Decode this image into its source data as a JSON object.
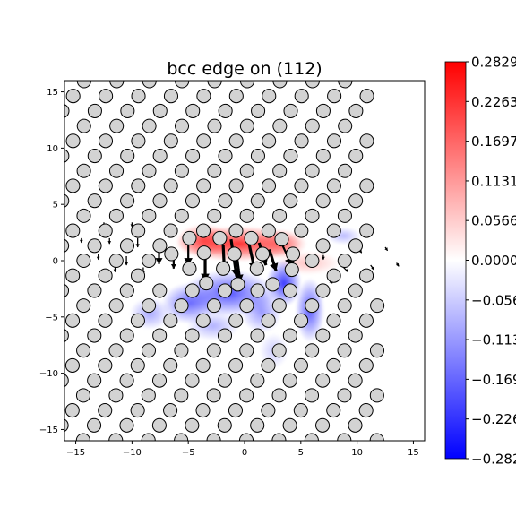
{
  "chart_data": {
    "type": "heatmap",
    "title": "bcc edge on (112)",
    "xlabel": "",
    "ylabel": "",
    "xlim": [
      -16,
      16
    ],
    "ylim": [
      -16,
      16
    ],
    "x_ticks": [
      -15,
      -10,
      -5,
      0,
      5,
      10,
      15
    ],
    "y_ticks": [
      -15,
      -10,
      -5,
      0,
      5,
      10,
      15
    ],
    "grid": false,
    "colormap": "bwr",
    "colorbar": {
      "min": -0.2829,
      "max": 0.2829,
      "ticks": [
        0.2829,
        0.2263,
        0.1697,
        0.1131,
        0.0566,
        0.0,
        -0.0566,
        -0.1131,
        -0.1697,
        -0.2263,
        -0.2829
      ],
      "tick_labels": [
        "0.2829",
        "0.2263",
        "0.1697",
        "0.1131",
        "0.0566",
        "0.0000",
        "−0.0566",
        "−0.1131",
        "−0.1697",
        "−0.2263",
        "−0.2829"
      ]
    },
    "lattice": {
      "row_spacing": 1.33,
      "col_spacing": 2.9,
      "row_shift_per_row": 0.97,
      "x_offset": -14.3,
      "y_offset": 0.0,
      "marker_radius": 0.5,
      "marker_fill": "#d3d3d3",
      "marker_edge": "#000000"
    },
    "core_atoms": [
      {
        "x": -6.5,
        "y": 0.6
      },
      {
        "x": -4.9,
        "y": 2.0
      },
      {
        "x": -4.9,
        "y": -0.7
      },
      {
        "x": -3.6,
        "y": 0.7
      },
      {
        "x": -3.4,
        "y": -2.0
      },
      {
        "x": -2.2,
        "y": 2.0
      },
      {
        "x": -1.9,
        "y": -0.7
      },
      {
        "x": -0.9,
        "y": 0.6
      },
      {
        "x": -0.6,
        "y": -2.1
      },
      {
        "x": 0.6,
        "y": 2.0
      },
      {
        "x": 1.1,
        "y": -0.7
      },
      {
        "x": 1.6,
        "y": 0.6
      },
      {
        "x": 2.5,
        "y": -2.1
      },
      {
        "x": 3.3,
        "y": 1.9
      },
      {
        "x": 4.2,
        "y": -0.8
      },
      {
        "x": 4.3,
        "y": 0.6
      }
    ],
    "displacement_arrows": [
      {
        "x": -1.2,
        "y": 1.9,
        "dx": 0.5,
        "dy": -3.3
      },
      {
        "x": -0.8,
        "y": 1.1,
        "dx": 0.4,
        "dy": -3.0
      },
      {
        "x": 1.3,
        "y": 1.6,
        "dx": 0.6,
        "dy": -2.0
      },
      {
        "x": 0.4,
        "y": 1.5,
        "dx": 0.5,
        "dy": -2.3
      },
      {
        "x": -3.5,
        "y": 0.9,
        "dx": 0.0,
        "dy": -2.7
      },
      {
        "x": -1.9,
        "y": 1.4,
        "dx": 0.1,
        "dy": -2.1
      },
      {
        "x": 2.2,
        "y": 1.0,
        "dx": 0.6,
        "dy": -1.9
      },
      {
        "x": 3.4,
        "y": 1.3,
        "dx": 0.8,
        "dy": -1.7
      },
      {
        "x": -5.0,
        "y": 1.4,
        "dx": 0.0,
        "dy": -1.8
      },
      {
        "x": -7.6,
        "y": 1.2,
        "dx": 0.0,
        "dy": -1.5
      },
      {
        "x": -6.3,
        "y": 0.4,
        "dx": 0.0,
        "dy": -1.1
      },
      {
        "x": 4.4,
        "y": 0.2,
        "dx": -0.3,
        "dy": -1.0
      },
      {
        "x": -9.5,
        "y": 2.0,
        "dx": 0.0,
        "dy": -0.8
      },
      {
        "x": -10.5,
        "y": 0.4,
        "dx": 0.0,
        "dy": -0.8
      },
      {
        "x": -12.0,
        "y": 2.0,
        "dx": 0.0,
        "dy": -0.5
      },
      {
        "x": -13.0,
        "y": 0.6,
        "dx": 0.0,
        "dy": -0.5
      },
      {
        "x": -11.5,
        "y": -0.5,
        "dx": 0.0,
        "dy": -0.5
      },
      {
        "x": -9.0,
        "y": -0.6,
        "dx": 0.0,
        "dy": -0.6
      },
      {
        "x": -14.5,
        "y": 2.0,
        "dx": 0.0,
        "dy": -0.4
      },
      {
        "x": -12.5,
        "y": 3.4,
        "dx": 0.0,
        "dy": -0.4
      },
      {
        "x": -10.0,
        "y": 3.4,
        "dx": 0.0,
        "dy": -0.4
      },
      {
        "x": 7.0,
        "y": 0.5,
        "dx": 0.0,
        "dy": -0.4
      },
      {
        "x": 8.8,
        "y": -0.6,
        "dx": 0.4,
        "dy": -0.4
      },
      {
        "x": 10.2,
        "y": 1.0,
        "dx": 0.2,
        "dy": -0.3
      },
      {
        "x": 11.2,
        "y": -0.4,
        "dx": 0.3,
        "dy": -0.4
      },
      {
        "x": 12.5,
        "y": 1.2,
        "dx": 0.2,
        "dy": -0.3
      },
      {
        "x": 13.5,
        "y": -0.2,
        "dx": 0.2,
        "dy": -0.3
      },
      {
        "x": 7.5,
        "y": -1.7,
        "dx": 0.3,
        "dy": -0.3
      }
    ],
    "strain_field": [
      {
        "x": -0.5,
        "y": 1.5,
        "amp": 0.24,
        "sx": 4.3,
        "sy": 1.2
      },
      {
        "x": -3.6,
        "y": 1.8,
        "amp": 0.18,
        "sx": 1.9,
        "sy": 1.1
      },
      {
        "x": 3.2,
        "y": 1.5,
        "amp": 0.14,
        "sx": 1.8,
        "sy": 1.0
      },
      {
        "x": 5.6,
        "y": -0.2,
        "amp": 0.07,
        "sx": 2.2,
        "sy": 0.8
      },
      {
        "x": -1.4,
        "y": -2.9,
        "amp": -0.2,
        "sx": 3.2,
        "sy": 1.6
      },
      {
        "x": -4.9,
        "y": -3.8,
        "amp": -0.17,
        "sx": 1.9,
        "sy": 1.4
      },
      {
        "x": 3.5,
        "y": -2.0,
        "amp": -0.23,
        "sx": 1.2,
        "sy": 1.6
      },
      {
        "x": 5.8,
        "y": -4.4,
        "amp": -0.19,
        "sx": 1.0,
        "sy": 2.2
      },
      {
        "x": 1.5,
        "y": -4.5,
        "amp": -0.12,
        "sx": 1.4,
        "sy": 1.5
      },
      {
        "x": 8.8,
        "y": 2.2,
        "amp": -0.08,
        "sx": 1.2,
        "sy": 0.6
      },
      {
        "x": -8.4,
        "y": -4.7,
        "amp": -0.1,
        "sx": 1.4,
        "sy": 1.1
      },
      {
        "x": 2.6,
        "y": -8.0,
        "amp": -0.06,
        "sx": 1.0,
        "sy": 1.2
      },
      {
        "x": -2.8,
        "y": -5.8,
        "amp": -0.09,
        "sx": 1.8,
        "sy": 1.0
      }
    ]
  }
}
